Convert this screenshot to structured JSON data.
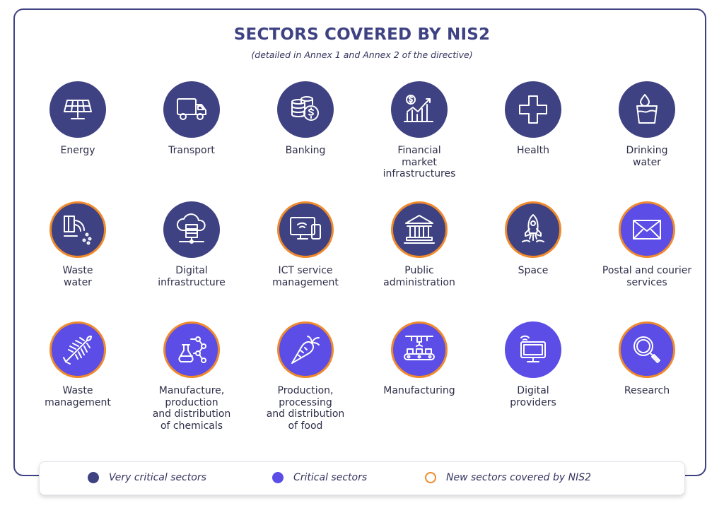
{
  "header": {
    "title": "SECTORS COVERED BY NIS2",
    "subtitle": "(detailed in Annex 1 and Annex 2 of the directive)"
  },
  "colors": {
    "very_critical": "#3f4282",
    "critical": "#5b4de6",
    "new_sector_ring": "#f08a2c"
  },
  "sectors": [
    {
      "label": "Energy",
      "category": "very_critical",
      "new": false,
      "icon": "solar-panel-icon"
    },
    {
      "label": "Transport",
      "category": "very_critical",
      "new": false,
      "icon": "truck-icon"
    },
    {
      "label": "Banking",
      "category": "very_critical",
      "new": false,
      "icon": "coins-icon"
    },
    {
      "label": "Financial\nmarket\ninfrastructures",
      "category": "very_critical",
      "new": false,
      "icon": "financial-chart-icon"
    },
    {
      "label": "Health",
      "category": "very_critical",
      "new": false,
      "icon": "medical-cross-icon"
    },
    {
      "label": "Drinking\nwater",
      "category": "very_critical",
      "new": false,
      "icon": "water-glass-icon"
    },
    {
      "label": "Waste\nwater",
      "category": "very_critical",
      "new": true,
      "icon": "waste-water-pipe-icon"
    },
    {
      "label": "Digital\ninfrastructure",
      "category": "very_critical",
      "new": false,
      "icon": "cloud-server-icon"
    },
    {
      "label": "ICT service\nmanagement",
      "category": "very_critical",
      "new": true,
      "icon": "monitor-devices-icon"
    },
    {
      "label": "Public\nadministration",
      "category": "very_critical",
      "new": true,
      "icon": "government-building-icon"
    },
    {
      "label": "Space",
      "category": "very_critical",
      "new": true,
      "icon": "rocket-icon"
    },
    {
      "label": "Postal and courier\nservices",
      "category": "critical",
      "new": true,
      "icon": "envelope-icon"
    },
    {
      "label": "Waste\nmanagement",
      "category": "critical",
      "new": true,
      "icon": "fish-bone-icon"
    },
    {
      "label": "Manufacture,\nproduction\nand distribution\nof chemicals",
      "category": "critical",
      "new": true,
      "icon": "chemistry-flask-icon"
    },
    {
      "label": "Production,\nprocessing\nand distribution\nof food",
      "category": "critical",
      "new": true,
      "icon": "carrot-icon"
    },
    {
      "label": "Manufacturing",
      "category": "critical",
      "new": true,
      "icon": "assembly-line-icon"
    },
    {
      "label": "Digital\nproviders",
      "category": "critical",
      "new": false,
      "icon": "digital-monitor-icon"
    },
    {
      "label": "Research",
      "category": "critical",
      "new": true,
      "icon": "magnifier-icon"
    }
  ],
  "legend": {
    "very_critical": "Very critical sectors",
    "critical": "Critical sectors",
    "new": "New sectors covered by NIS2"
  }
}
